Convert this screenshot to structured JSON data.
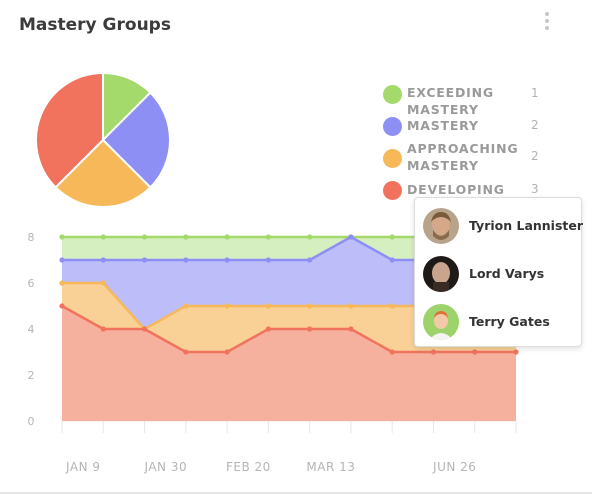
{
  "header": {
    "title": "Mastery Groups",
    "menu_icon": "more-vertical-icon"
  },
  "colors": {
    "exceeding": "#a4d96c",
    "mastery": "#8d8ff5",
    "approaching": "#f7b85a",
    "developing": "#f1735d"
  },
  "legend": [
    {
      "label": "EXCEEDING MASTERY",
      "count": "1",
      "color": "#a4d96c"
    },
    {
      "label": "MASTERY",
      "count": "2",
      "color": "#8d8ff5"
    },
    {
      "label": "APPROACHING MASTERY",
      "count": "2",
      "color": "#f7b85a"
    },
    {
      "label": "DEVELOPING",
      "count": "3",
      "color": "#f1735d"
    }
  ],
  "pie_data": {
    "type": "pie",
    "slices": [
      {
        "label": "EXCEEDING MASTERY",
        "value": 1,
        "color": "#a4d96c"
      },
      {
        "label": "MASTERY",
        "value": 2,
        "color": "#8d8ff5"
      },
      {
        "label": "APPROACHING MASTERY",
        "value": 2,
        "color": "#f7b85a"
      },
      {
        "label": "DEVELOPING",
        "value": 3,
        "color": "#f1735d"
      }
    ]
  },
  "chart_data": {
    "type": "area",
    "x_tick_labels": [
      "JAN 9",
      "JAN 30",
      "FEB 20",
      "MAR 13",
      "JUN 26"
    ],
    "y_ticks": [
      0,
      2,
      4,
      6,
      8
    ],
    "ylim": [
      0,
      8
    ],
    "point_count": 12,
    "x_label_positions": [
      1,
      3,
      5,
      7,
      10
    ],
    "series": [
      {
        "name": "EXCEEDING MASTERY",
        "color": "#a4d96c",
        "values": [
          8,
          8,
          8,
          8,
          8,
          8,
          8,
          8,
          8,
          8,
          8,
          8
        ]
      },
      {
        "name": "MASTERY",
        "color": "#8d8ff5",
        "values": [
          7,
          7,
          7,
          7,
          7,
          7,
          7,
          8,
          7,
          7,
          7,
          7
        ]
      },
      {
        "name": "APPROACHING MASTERY",
        "color": "#f7b85a",
        "values": [
          6,
          6,
          4,
          5,
          5,
          5,
          5,
          5,
          5,
          5,
          5,
          5
        ]
      },
      {
        "name": "DEVELOPING",
        "color": "#f1735d",
        "values": [
          5,
          4,
          4,
          3,
          3,
          4,
          4,
          4,
          3,
          3,
          3,
          3
        ]
      }
    ]
  },
  "tooltip": {
    "students": [
      {
        "name": "Tyrion Lannister",
        "avatar": "tyrion-avatar"
      },
      {
        "name": "Lord Varys",
        "avatar": "varys-avatar"
      },
      {
        "name": "Terry Gates",
        "avatar": "terry-avatar"
      }
    ]
  }
}
